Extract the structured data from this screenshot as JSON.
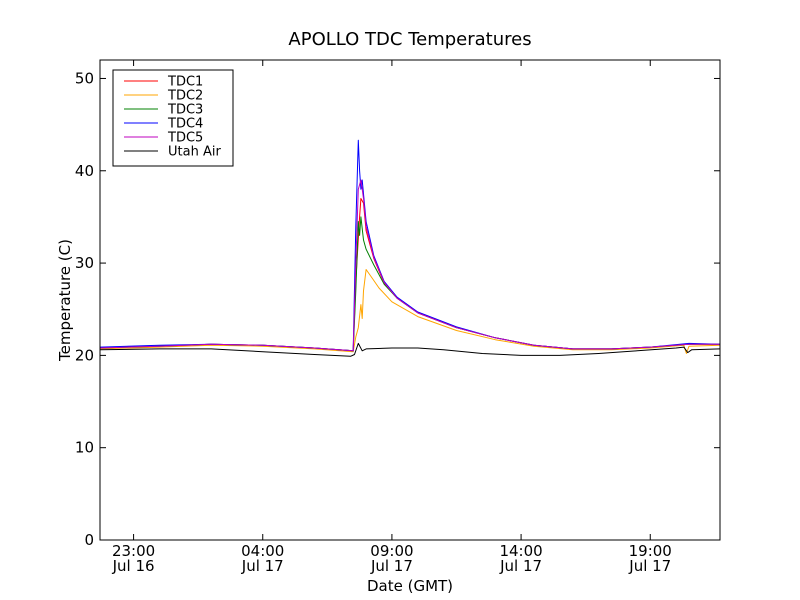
{
  "chart_data": {
    "type": "line",
    "title": "APOLLO TDC Temperatures",
    "xlabel": "Date (GMT)",
    "ylabel": "Temperature (C)",
    "ylim": [
      0,
      52
    ],
    "xlim_hours": [
      -1.3,
      22.7
    ],
    "yticks": [
      0,
      10,
      20,
      30,
      40,
      50
    ],
    "xticks": [
      {
        "hour": 0,
        "line1": "23:00",
        "line2": "Jul 16"
      },
      {
        "hour": 5,
        "line1": "04:00",
        "line2": "Jul 17"
      },
      {
        "hour": 10,
        "line1": "09:00",
        "line2": "Jul 17"
      },
      {
        "hour": 15,
        "line1": "14:00",
        "line2": "Jul 17"
      },
      {
        "hour": 20,
        "line1": "19:00",
        "line2": "Jul 17"
      }
    ],
    "legend_position": "top-left",
    "x_unit_note": "hours after Jul 16 23:00 GMT",
    "series": [
      {
        "name": "TDC1",
        "color": "#ff0000",
        "points": [
          [
            -1.3,
            20.8
          ],
          [
            1,
            21.0
          ],
          [
            3,
            21.2
          ],
          [
            5,
            21.1
          ],
          [
            7,
            20.8
          ],
          [
            8.5,
            20.5
          ],
          [
            8.6,
            28.0
          ],
          [
            8.75,
            35.0
          ],
          [
            8.8,
            37.0
          ],
          [
            8.9,
            36.5
          ],
          [
            9.0,
            33.5
          ],
          [
            9.3,
            30.5
          ],
          [
            9.7,
            27.8
          ],
          [
            10.2,
            26.2
          ],
          [
            11,
            24.6
          ],
          [
            12.5,
            23.0
          ],
          [
            14,
            21.9
          ],
          [
            15.5,
            21.1
          ],
          [
            17,
            20.7
          ],
          [
            18.5,
            20.7
          ],
          [
            20,
            20.9
          ],
          [
            21.5,
            21.2
          ],
          [
            22.7,
            21.2
          ]
        ]
      },
      {
        "name": "TDC2",
        "color": "#ffa500",
        "points": [
          [
            -1.3,
            20.7
          ],
          [
            1,
            20.9
          ],
          [
            3,
            21.1
          ],
          [
            5,
            21.0
          ],
          [
            7,
            20.7
          ],
          [
            8.5,
            20.4
          ],
          [
            8.6,
            22.0
          ],
          [
            8.7,
            23.0
          ],
          [
            8.8,
            25.5
          ],
          [
            8.85,
            24.0
          ],
          [
            8.9,
            27.0
          ],
          [
            9.0,
            29.3
          ],
          [
            9.2,
            28.5
          ],
          [
            9.5,
            27.3
          ],
          [
            10,
            25.8
          ],
          [
            11,
            24.2
          ],
          [
            12.5,
            22.7
          ],
          [
            14,
            21.7
          ],
          [
            15.5,
            21.0
          ],
          [
            17,
            20.6
          ],
          [
            18.5,
            20.6
          ],
          [
            20,
            20.8
          ],
          [
            21.3,
            21.1
          ],
          [
            21.4,
            20.2
          ],
          [
            21.5,
            21.0
          ],
          [
            22.7,
            21.1
          ]
        ]
      },
      {
        "name": "TDC3",
        "color": "#008000",
        "points": [
          [
            -1.3,
            20.8
          ],
          [
            1,
            21.0
          ],
          [
            3,
            21.2
          ],
          [
            5,
            21.1
          ],
          [
            7,
            20.8
          ],
          [
            8.5,
            20.5
          ],
          [
            8.6,
            27.0
          ],
          [
            8.7,
            34.5
          ],
          [
            8.75,
            33.0
          ],
          [
            8.8,
            35.0
          ],
          [
            8.9,
            32.5
          ],
          [
            9.0,
            31.5
          ],
          [
            9.3,
            29.8
          ],
          [
            9.7,
            27.7
          ],
          [
            10.2,
            26.2
          ],
          [
            11,
            24.6
          ],
          [
            12.5,
            23.0
          ],
          [
            14,
            21.9
          ],
          [
            15.5,
            21.1
          ],
          [
            17,
            20.7
          ],
          [
            18.5,
            20.7
          ],
          [
            20,
            20.9
          ],
          [
            21.5,
            21.2
          ],
          [
            22.7,
            21.2
          ]
        ]
      },
      {
        "name": "TDC4",
        "color": "#0000ff",
        "points": [
          [
            -1.3,
            20.9
          ],
          [
            1,
            21.1
          ],
          [
            3,
            21.2
          ],
          [
            5,
            21.1
          ],
          [
            7,
            20.8
          ],
          [
            8.5,
            20.5
          ],
          [
            8.6,
            34.0
          ],
          [
            8.7,
            43.3
          ],
          [
            8.75,
            40.0
          ],
          [
            8.8,
            38.0
          ],
          [
            8.85,
            39.0
          ],
          [
            8.9,
            37.5
          ],
          [
            9.0,
            34.5
          ],
          [
            9.3,
            30.8
          ],
          [
            9.7,
            28.0
          ],
          [
            10.2,
            26.3
          ],
          [
            11,
            24.7
          ],
          [
            12.5,
            23.1
          ],
          [
            14,
            21.9
          ],
          [
            15.5,
            21.1
          ],
          [
            17,
            20.7
          ],
          [
            18.5,
            20.7
          ],
          [
            20,
            20.9
          ],
          [
            21.5,
            21.3
          ],
          [
            22.7,
            21.2
          ]
        ]
      },
      {
        "name": "TDC5",
        "color": "#bf00bf",
        "points": [
          [
            -1.3,
            20.8
          ],
          [
            1,
            21.0
          ],
          [
            3,
            21.2
          ],
          [
            5,
            21.1
          ],
          [
            7,
            20.8
          ],
          [
            8.5,
            20.5
          ],
          [
            8.6,
            30.0
          ],
          [
            8.7,
            38.0
          ],
          [
            8.8,
            39.0
          ],
          [
            8.9,
            37.0
          ],
          [
            9.0,
            34.0
          ],
          [
            9.3,
            30.6
          ],
          [
            9.7,
            27.9
          ],
          [
            10.2,
            26.2
          ],
          [
            11,
            24.6
          ],
          [
            12.5,
            23.0
          ],
          [
            14,
            21.9
          ],
          [
            15.5,
            21.1
          ],
          [
            17,
            20.7
          ],
          [
            18.5,
            20.7
          ],
          [
            20,
            20.9
          ],
          [
            21.5,
            21.2
          ],
          [
            22.7,
            21.2
          ]
        ]
      },
      {
        "name": "Utah Air",
        "color": "#000000",
        "points": [
          [
            -1.3,
            20.6
          ],
          [
            1,
            20.7
          ],
          [
            3,
            20.7
          ],
          [
            5,
            20.4
          ],
          [
            7,
            20.1
          ],
          [
            8.4,
            19.9
          ],
          [
            8.55,
            20.1
          ],
          [
            8.7,
            21.3
          ],
          [
            8.85,
            20.5
          ],
          [
            9.0,
            20.7
          ],
          [
            10,
            20.8
          ],
          [
            11,
            20.8
          ],
          [
            12,
            20.6
          ],
          [
            13.5,
            20.2
          ],
          [
            15,
            20.0
          ],
          [
            16.5,
            20.0
          ],
          [
            18,
            20.2
          ],
          [
            19.5,
            20.5
          ],
          [
            21,
            20.8
          ],
          [
            21.3,
            20.9
          ],
          [
            21.45,
            20.3
          ],
          [
            21.6,
            20.6
          ],
          [
            22.7,
            20.7
          ]
        ]
      }
    ]
  }
}
